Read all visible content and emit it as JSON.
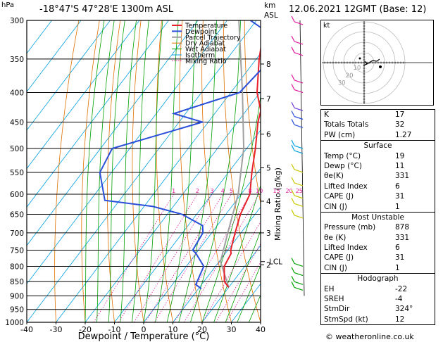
{
  "header": {
    "hpa_label": "hPa",
    "location": "-18°47'S  47°28'E  1300m  ASL",
    "km_label": "km",
    "asl_label": "ASL",
    "datetime": "12.06.2021  12GMT  (Base: 12)"
  },
  "chart_data": {
    "type": "skewt",
    "xlabel": "Dewpoint / Temperature (°C)",
    "ylabel_right": "Mixing Ratio (g/kg)",
    "xlim": [
      -40,
      40
    ],
    "pressure_range": [
      300,
      1000
    ],
    "pressure_ticks": [
      300,
      350,
      400,
      450,
      500,
      550,
      600,
      650,
      700,
      750,
      800,
      850,
      900,
      950,
      1000
    ],
    "temp_ticks": [
      -40,
      -30,
      -20,
      -10,
      0,
      10,
      20,
      30,
      40
    ],
    "km_ticks": [
      {
        "label": "8",
        "p": 357
      },
      {
        "label": "7",
        "p": 410
      },
      {
        "label": "6",
        "p": 472
      },
      {
        "label": "5",
        "p": 540
      },
      {
        "label": "4",
        "p": 617
      },
      {
        "label": "3",
        "p": 700
      },
      {
        "label": "2",
        "p": 795
      }
    ],
    "lcl": {
      "label": "LCL",
      "p": 785
    },
    "mixing_ratio_labels": [
      "1",
      "2",
      "3",
      "4",
      "5",
      "8",
      "10",
      "15",
      "20",
      "25"
    ],
    "mixing_ratio_values": [
      1,
      2,
      3,
      4,
      5,
      8,
      10,
      15,
      20,
      25
    ],
    "legend": [
      {
        "name": "Temperature",
        "color": "#e8202a"
      },
      {
        "name": "Dewpoint",
        "color": "#2a4fd8"
      },
      {
        "name": "Parcel Trajectory",
        "color": "#a0a0a0"
      },
      {
        "name": "Dry Adiabat",
        "color": "#e07000"
      },
      {
        "name": "Wet Adiabat",
        "color": "#00a000"
      },
      {
        "name": "Isotherm",
        "color": "#00a0e0"
      },
      {
        "name": "Mixing Ratio",
        "color": "#e0189c"
      }
    ],
    "temperature": [
      {
        "p": 870,
        "t": 20
      },
      {
        "p": 850,
        "t": 17
      },
      {
        "p": 800,
        "t": 13
      },
      {
        "p": 760,
        "t": 12
      },
      {
        "p": 750,
        "t": 11
      },
      {
        "p": 700,
        "t": 8
      },
      {
        "p": 650,
        "t": 5
      },
      {
        "p": 600,
        "t": 3
      },
      {
        "p": 550,
        "t": -2
      },
      {
        "p": 500,
        "t": -7
      },
      {
        "p": 450,
        "t": -13
      },
      {
        "p": 430,
        "t": -15
      },
      {
        "p": 400,
        "t": -21
      },
      {
        "p": 350,
        "t": -29
      },
      {
        "p": 300,
        "t": -37
      }
    ],
    "dewpoint": [
      {
        "p": 875,
        "t": 11
      },
      {
        "p": 860,
        "t": 8
      },
      {
        "p": 800,
        "t": 6
      },
      {
        "p": 760,
        "t": 0
      },
      {
        "p": 750,
        "t": -2
      },
      {
        "p": 700,
        "t": -3
      },
      {
        "p": 680,
        "t": -5
      },
      {
        "p": 650,
        "t": -15
      },
      {
        "p": 630,
        "t": -27
      },
      {
        "p": 615,
        "t": -45
      },
      {
        "p": 550,
        "t": -54
      },
      {
        "p": 500,
        "t": -56
      },
      {
        "p": 450,
        "t": -32
      },
      {
        "p": 435,
        "t": -44
      },
      {
        "p": 400,
        "t": -27
      },
      {
        "p": 330,
        "t": -24
      },
      {
        "p": 300,
        "t": -42
      }
    ],
    "parcel": [
      {
        "p": 870,
        "t": 20
      },
      {
        "p": 785,
        "t": 10.5
      },
      {
        "p": 700,
        "t": 5.5
      },
      {
        "p": 600,
        "t": -1
      },
      {
        "p": 500,
        "t": -11
      },
      {
        "p": 400,
        "t": -26
      },
      {
        "p": 300,
        "t": -46
      }
    ]
  },
  "hodograph": {
    "unit_label": "kt",
    "ring_labels": [
      "10",
      "20",
      "30"
    ]
  },
  "indices": {
    "k_label": "K",
    "k_value": "17",
    "tt_label": "Totals Totals",
    "tt_value": "32",
    "pw_label": "PW (cm)",
    "pw_value": "1.27"
  },
  "surface": {
    "title": "Surface",
    "temp_label": "Temp (°C)",
    "temp_value": "19",
    "dewp_label": "Dewp (°C)",
    "dewp_value": "11",
    "theta_label": "θe(K)",
    "theta_value": "331",
    "li_label": "Lifted Index",
    "li_value": "6",
    "cape_label": "CAPE (J)",
    "cape_value": "31",
    "cin_label": "CIN (J)",
    "cin_value": "1"
  },
  "most_unstable": {
    "title": "Most Unstable",
    "pres_label": "Pressure (mb)",
    "pres_value": "878",
    "theta_label": "θe (K)",
    "theta_value": "331",
    "li_label": "Lifted Index",
    "li_value": "6",
    "cape_label": "CAPE (J)",
    "cape_value": "31",
    "cin_label": "CIN (J)",
    "cin_value": "1"
  },
  "hodo_table": {
    "title": "Hodograph",
    "eh_label": "EH",
    "eh_value": "-22",
    "srh_label": "SREH",
    "srh_value": "-4",
    "dir_label": "StmDir",
    "dir_value": "324°",
    "spd_label": "StmSpd (kt)",
    "spd_value": "12"
  },
  "footer": {
    "credit": "© weatheronline.co.uk"
  }
}
